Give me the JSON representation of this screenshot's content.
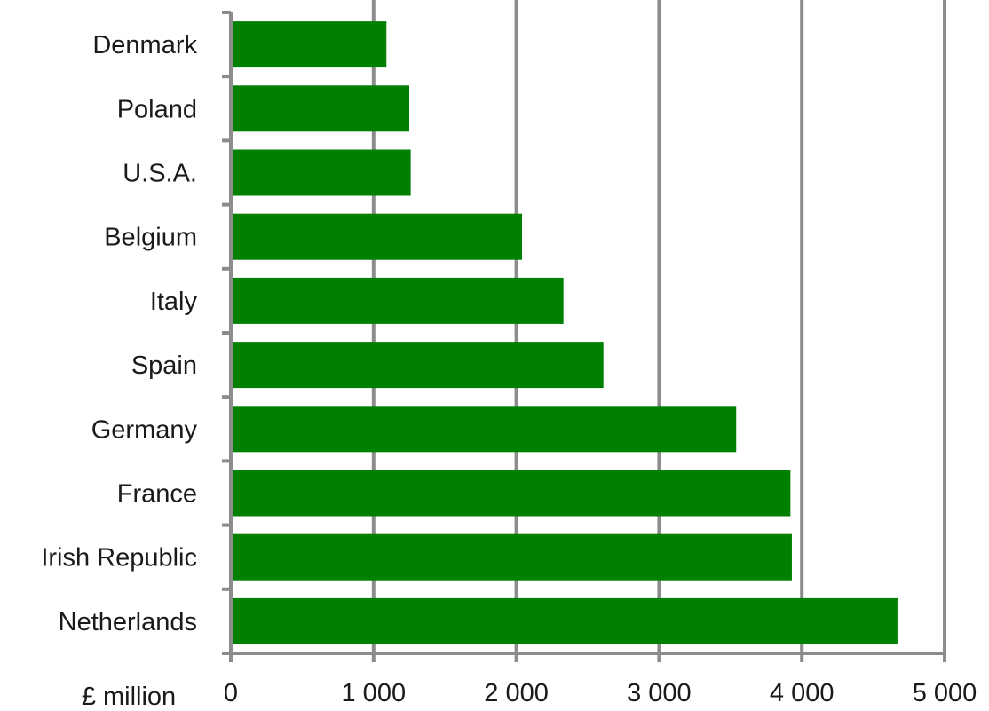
{
  "chart_data": {
    "type": "bar",
    "orientation": "horizontal",
    "categories": [
      "Denmark",
      "Poland",
      "U.S.A.",
      "Belgium",
      "Italy",
      "Spain",
      "Germany",
      "France",
      "Irish Republic",
      "Netherlands"
    ],
    "values": [
      1090,
      1250,
      1260,
      2040,
      2330,
      2610,
      3540,
      3920,
      3930,
      4670
    ],
    "xlabel": "£ million",
    "xlim": [
      0,
      5000
    ],
    "xticks": [
      0,
      1000,
      2000,
      3000,
      4000,
      5000
    ],
    "xtick_labels": [
      "0",
      "1 000",
      "2 000",
      "3 000",
      "4 000",
      "5 000"
    ],
    "bar_color": "#008000",
    "grid": true
  }
}
